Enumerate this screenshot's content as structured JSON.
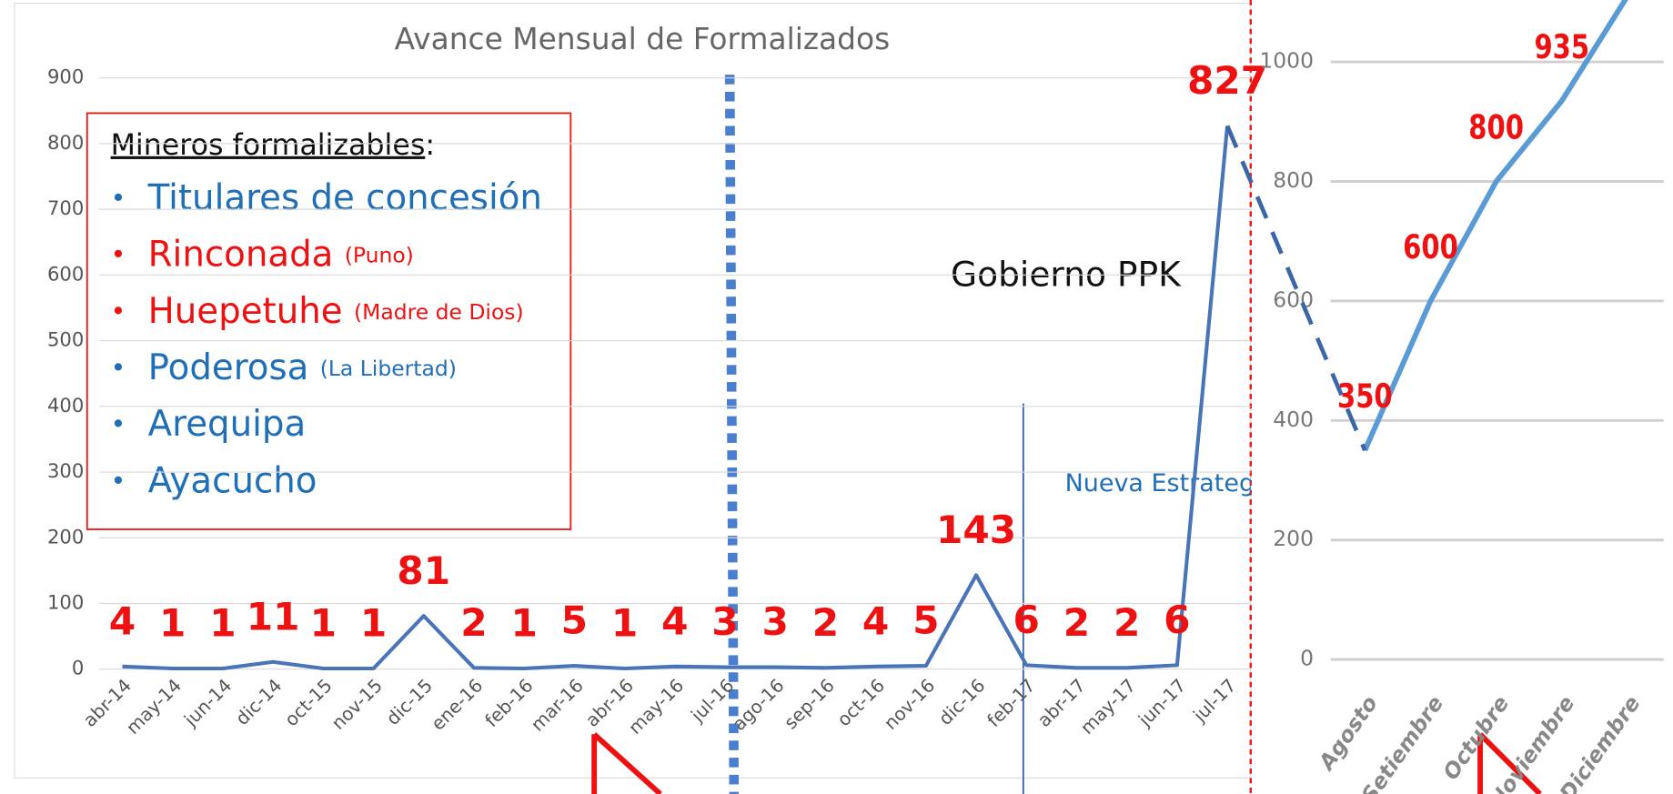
{
  "chart_data": [
    {
      "type": "line",
      "title": "Avance Mensual de Formalizados",
      "categories": [
        "abr-14",
        "may-14",
        "jun-14",
        "dic-14",
        "oct-15",
        "nov-15",
        "dic-15",
        "ene-16",
        "feb-16",
        "mar-16",
        "abr-16",
        "may-16",
        "jul-16",
        "ago-16",
        "sep-16",
        "oct-16",
        "nov-16",
        "dic-16",
        "feb-17",
        "abr-17",
        "may-17",
        "jun-17",
        "jul-17"
      ],
      "values": [
        4,
        1,
        1,
        11,
        1,
        1,
        81,
        2,
        1,
        5,
        1,
        4,
        3,
        3,
        2,
        4,
        5,
        143,
        6,
        2,
        2,
        6,
        827
      ],
      "color": "#4a74b8",
      "label_color": "#ee1111",
      "ylim": [
        0,
        900
      ],
      "yticks": [
        0,
        100,
        200,
        300,
        400,
        500,
        600,
        700,
        800,
        900
      ],
      "grid": true,
      "annotations": [
        "Gobierno PPK",
        "Nueva Estrategia"
      ],
      "text_box": {
        "heading": "Mineros formalizables",
        "heading_suffix": ":",
        "items": [
          {
            "text": "Titulares de concesión",
            "note": null,
            "color": "#1f6fb8"
          },
          {
            "text": "Rinconada",
            "note": "(Puno)",
            "color": "#ee1111"
          },
          {
            "text": "Huepetuhe",
            "note": "(Madre de Dios)",
            "color": "#ee1111"
          },
          {
            "text": "Poderosa",
            "note": "(La Libertad)",
            "color": "#1f6fb8"
          },
          {
            "text": "Arequipa",
            "note": null,
            "color": "#1f6fb8"
          },
          {
            "text": "Ayacucho",
            "note": null,
            "color": "#1f6fb8"
          }
        ]
      }
    },
    {
      "type": "line",
      "categories": [
        "Agosto",
        "Setiembre",
        "Octubre",
        "Noviembre",
        "Diciembre"
      ],
      "values": [
        350,
        600,
        800,
        935,
        1110
      ],
      "value_labels": [
        "350",
        "600",
        "800",
        "935",
        null
      ],
      "color": "#5b9bd5",
      "label_color": "#ee1111",
      "ylim": [
        -200,
        1100
      ],
      "yticks": [
        0,
        200,
        400,
        600,
        800,
        1000
      ],
      "grid": true
    }
  ]
}
